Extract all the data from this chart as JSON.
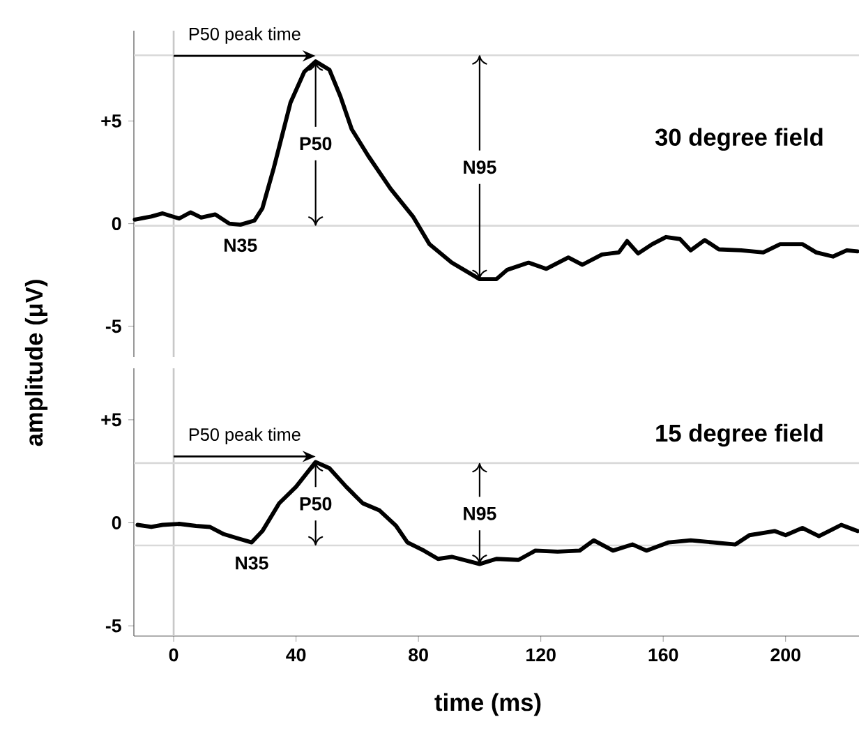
{
  "chart_data": [
    {
      "type": "line",
      "title": "30 degree field",
      "ylabel": "amplitude (μV)",
      "xlim": [
        -13,
        224
      ],
      "ylim": [
        -6.5,
        9.4
      ],
      "tick_labels": "y",
      "yticks": [
        {
          "value": 5,
          "label": "+5"
        },
        0,
        -5
      ],
      "x": [
        -12.7,
        -7.3,
        -3.6,
        1.8,
        5.5,
        9,
        13.6,
        18.2,
        21.8,
        26.4,
        29,
        32.7,
        38.2,
        42.7,
        46.4,
        50.9,
        54.5,
        58.2,
        63.6,
        70.9,
        78.2,
        83.6,
        90.9,
        100,
        105.5,
        109,
        116,
        121.8,
        129,
        133.6,
        140,
        145.5,
        148.2,
        151.8,
        156.4,
        160.9,
        165.5,
        169,
        173.6,
        178.2,
        185.5,
        192.7,
        198.2,
        205.5,
        210,
        215.5,
        220,
        223.5
      ],
      "series": [
        {
          "color": "#000000",
          "values": [
            0.2,
            0.35,
            0.5,
            0.25,
            0.55,
            0.3,
            0.45,
            0,
            -0.05,
            0.15,
            0.75,
            2.7,
            5.9,
            7.4,
            7.9,
            7.5,
            6.2,
            4.6,
            3.3,
            1.7,
            0.35,
            -1.0,
            -1.9,
            -2.7,
            -2.7,
            -2.25,
            -1.9,
            -2.2,
            -1.65,
            -2.0,
            -1.5,
            -1.4,
            -0.85,
            -1.45,
            -1.0,
            -0.65,
            -0.75,
            -1.3,
            -0.8,
            -1.25,
            -1.3,
            -1.4,
            -1.0,
            -1.0,
            -1.4,
            -1.6,
            -1.3,
            -1.35
          ]
        }
      ],
      "ref_lines": [
        {
          "axis": "x",
          "value": 0,
          "color": "#c8c8c8"
        },
        {
          "axis": "y",
          "value": 8.2,
          "color": "#d9d9d9"
        },
        {
          "axis": "y",
          "value": -0.1,
          "color": "#d9d9d9"
        }
      ],
      "annotations": [
        {
          "text": "P50 peak time",
          "x": 46.4,
          "y": 7.9
        },
        {
          "text": "P50",
          "x": 46.4,
          "y": 7.9
        },
        {
          "text": "N95",
          "x": 100,
          "y": -2.7
        },
        {
          "text": "N35",
          "x": 21.8,
          "y": -0.05
        }
      ]
    },
    {
      "type": "line",
      "title": "15 degree field",
      "xlabel": "time (ms)",
      "xlim": [
        -13,
        224
      ],
      "ylim": [
        -5.5,
        7.5
      ],
      "xticks": [
        0,
        40,
        80,
        120,
        160,
        200
      ],
      "yticks": [
        {
          "value": 5,
          "label": "+5"
        },
        0,
        -5
      ],
      "x": [
        -11.8,
        -7.3,
        -3.6,
        1.8,
        7.3,
        11.8,
        16.4,
        20.9,
        25.5,
        29,
        34.5,
        40,
        46.4,
        50.9,
        56.4,
        61.8,
        67.3,
        72.7,
        76.4,
        81.8,
        86.4,
        90.9,
        100,
        105.5,
        112.7,
        118.2,
        125.5,
        132.7,
        137.3,
        143.6,
        150,
        154.5,
        161.8,
        169,
        176.4,
        183.6,
        188.2,
        196.4,
        200,
        205.5,
        210.9,
        218.2,
        223.5
      ],
      "series": [
        {
          "color": "#000000",
          "values": [
            -0.1,
            -0.2,
            -0.1,
            -0.05,
            -0.15,
            -0.2,
            -0.55,
            -0.75,
            -0.95,
            -0.4,
            0.95,
            1.75,
            2.95,
            2.65,
            1.75,
            0.95,
            0.6,
            -0.15,
            -0.95,
            -1.35,
            -1.75,
            -1.65,
            -2.0,
            -1.75,
            -1.8,
            -1.35,
            -1.4,
            -1.35,
            -0.85,
            -1.35,
            -1.05,
            -1.35,
            -0.95,
            -0.85,
            -0.95,
            -1.05,
            -0.6,
            -0.4,
            -0.6,
            -0.25,
            -0.65,
            -0.1,
            -0.4
          ]
        }
      ],
      "ref_lines": [
        {
          "axis": "x",
          "value": 0,
          "color": "#c8c8c8"
        },
        {
          "axis": "y",
          "value": 2.9,
          "color": "#d9d9d9"
        },
        {
          "axis": "y",
          "value": -1.1,
          "color": "#d9d9d9"
        }
      ],
      "annotations": [
        {
          "text": "P50 peak time",
          "x": 46.4,
          "y": 2.95
        },
        {
          "text": "P50",
          "x": 46.4,
          "y": 2.95
        },
        {
          "text": "N95",
          "x": 100,
          "y": -2.0
        },
        {
          "text": "N35",
          "x": 25.5,
          "y": -0.95
        }
      ]
    }
  ]
}
